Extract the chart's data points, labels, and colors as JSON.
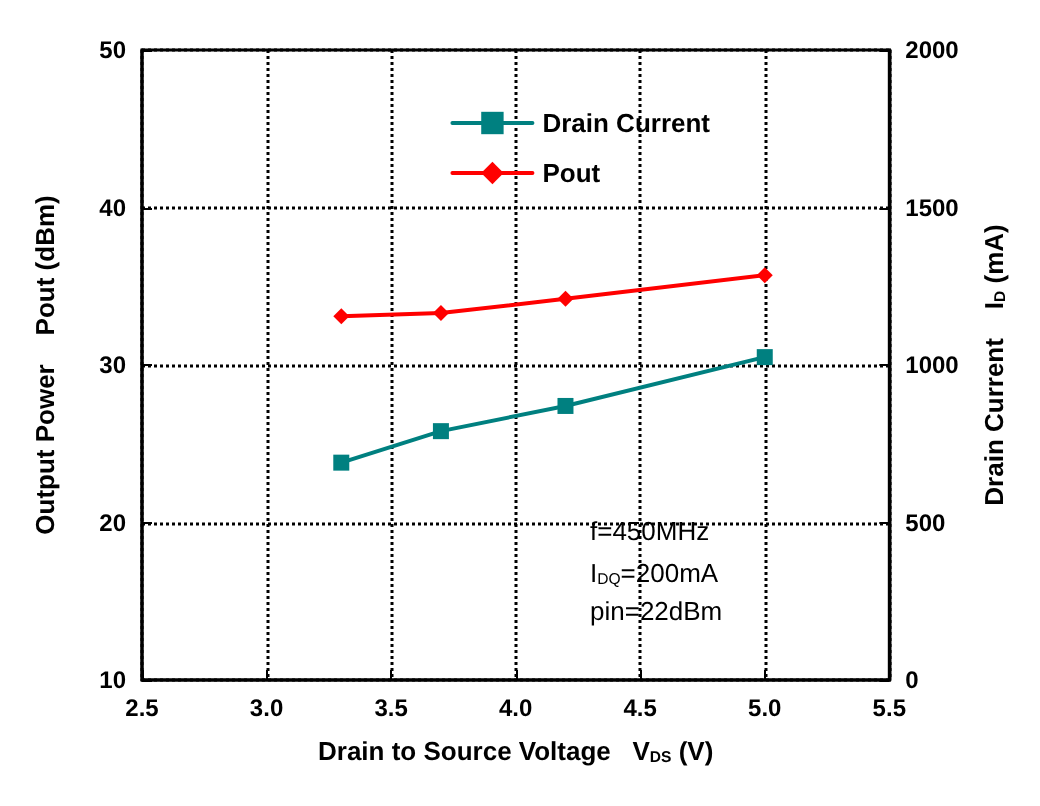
{
  "chart_data": {
    "type": "line",
    "xlabel": "Drain to Source Voltage   V$_{DS}$ (V)",
    "ylabel": "Output Power    Pout (dBm)",
    "y2label": "Drain Current    I$_{D}$ (mA)",
    "x": [
      3.3,
      3.7,
      4.2,
      5.0
    ],
    "series": [
      {
        "name": "Drain Current",
        "color": "#008080",
        "values": [
          690,
          790,
          870,
          1025
        ],
        "axis": "y2",
        "marker": "square"
      },
      {
        "name": "Pout",
        "color": "#ff0000",
        "values": [
          33.1,
          33.3,
          34.2,
          35.7
        ],
        "marker": "diamond"
      }
    ],
    "xlim": [
      2.5,
      5.5
    ],
    "xticks": [
      2.5,
      {
        "value": 3,
        "label": "3.0"
      },
      3.5,
      {
        "value": 4,
        "label": "4.0"
      },
      4.5,
      {
        "value": 5,
        "label": "5.0"
      },
      5.5
    ],
    "ylim": [
      10,
      50
    ],
    "yticks": [
      10,
      20,
      30,
      40,
      50
    ],
    "y2lim": [
      0,
      2000
    ],
    "y2ticks": [
      0,
      500,
      1000,
      1500,
      2000
    ],
    "grid": true,
    "legend": "top right",
    "line_style": "solid",
    "annotations": [
      "f=450MHz",
      "I$_{DQ}$=200mA",
      "pin=22dBm"
    ]
  }
}
